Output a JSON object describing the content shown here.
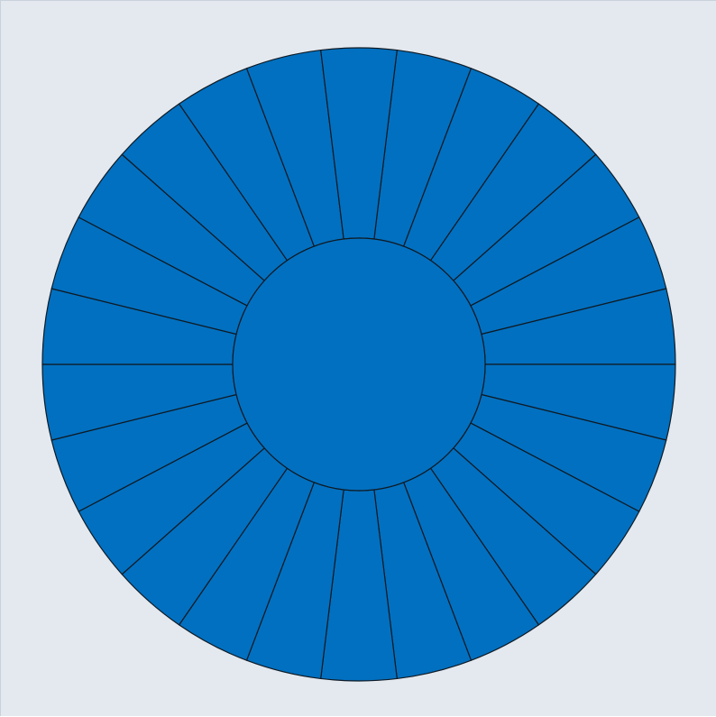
{
  "diagram": {
    "type": "segmented-ring",
    "segment_count": 26,
    "colors": {
      "background": "#e4e9ef",
      "fill": "#0270c0",
      "stroke": "#0f1a24"
    }
  }
}
